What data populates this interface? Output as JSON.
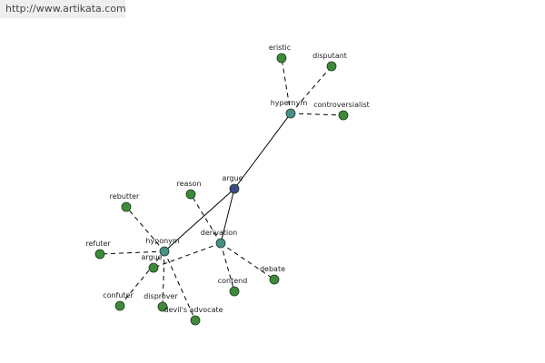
{
  "header": {
    "url": "http://www.artikata.com"
  },
  "nodes": [
    {
      "label": "argue"
    },
    {
      "label": "hypernym"
    },
    {
      "label": "derivation"
    },
    {
      "label": "hyponym"
    },
    {
      "label": "eristic"
    },
    {
      "label": "disputant"
    },
    {
      "label": "controversialist"
    },
    {
      "label": "reason"
    },
    {
      "label": "contend"
    },
    {
      "label": "debate"
    },
    {
      "label": "argue"
    },
    {
      "label": "rebutter"
    },
    {
      "label": "refuter"
    },
    {
      "label": "confuter"
    },
    {
      "label": "disprover"
    },
    {
      "label": "devil's advocate"
    }
  ]
}
